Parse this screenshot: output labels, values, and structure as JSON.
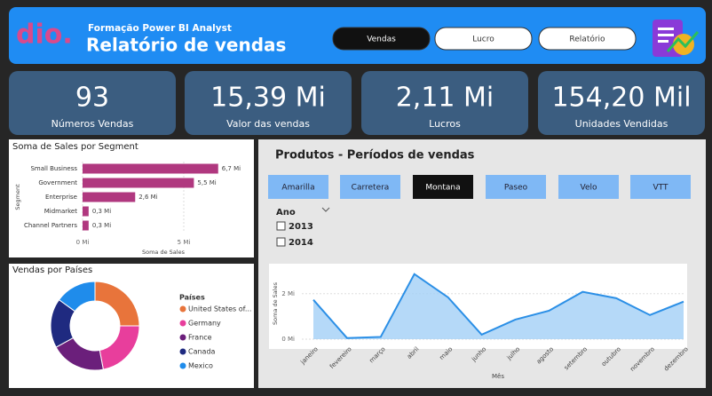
{
  "header": {
    "logo": "dio.",
    "subtitle": "Formação Power BI Analyst",
    "title": "Relatório de vendas"
  },
  "nav": [
    {
      "label": "Vendas",
      "selected": true
    },
    {
      "label": "Lucro",
      "selected": false
    },
    {
      "label": "Relatório",
      "selected": false
    }
  ],
  "kpis": [
    {
      "value": "93",
      "label": "Números Vendas"
    },
    {
      "value": "15,39 Mi",
      "label": "Valor das vendas"
    },
    {
      "value": "2,11 Mi",
      "label": "Lucros"
    },
    {
      "value": "154,20 Mil",
      "label": "Unidades Vendidas"
    }
  ],
  "products_panel": {
    "title": "Produtos - Períodos  de vendas",
    "products": [
      {
        "label": "Amarilla",
        "selected": false
      },
      {
        "label": "Carretera",
        "selected": false
      },
      {
        "label": "Montana",
        "selected": true
      },
      {
        "label": "Paseo",
        "selected": false
      },
      {
        "label": "Velo",
        "selected": false
      },
      {
        "label": "VTT",
        "selected": false
      }
    ],
    "slicer": {
      "title": "Ano",
      "options": [
        "2013",
        "2014"
      ]
    }
  },
  "chart_data": [
    {
      "type": "hbar",
      "title": "Soma de Sales por Segment",
      "x_label": "Soma de Sales",
      "y_label": "Segment",
      "categories": [
        "Small Business",
        "Government",
        "Enterprise",
        "Midmarket",
        "Channel Partners"
      ],
      "values": [
        6.7,
        5.5,
        2.6,
        0.3,
        0.3
      ],
      "value_labels": [
        "6,7 Mi",
        "5,5 Mi",
        "2,6 Mi",
        "0,3 Mi",
        "0,3 Mi"
      ],
      "color": "#b0387f",
      "xlim": [
        0,
        7.5
      ],
      "xticks": [
        {
          "value": 0,
          "label": "0 Mi"
        },
        {
          "value": 5,
          "label": "5 Mi"
        }
      ]
    },
    {
      "type": "donut",
      "title": "Vendas por Países",
      "legend_title": "Países",
      "categories": [
        "United States of...",
        "Germany",
        "France",
        "Canada",
        "Mexico"
      ],
      "values": [
        25,
        22,
        20,
        18,
        15
      ],
      "colors": [
        "#e8743b",
        "#e83e9c",
        "#6b1f7b",
        "#1f2a80",
        "#1f8ceb"
      ]
    },
    {
      "type": "area",
      "x_label": "Mês",
      "y_label": "Soma de Sales",
      "categories": [
        "janeiro",
        "fevereiro",
        "março",
        "abril",
        "maio",
        "junho",
        "julho",
        "agosto",
        "setembro",
        "outubro",
        "novembro",
        "dezembro"
      ],
      "values": [
        1.73,
        0.05,
        0.1,
        2.86,
        1.84,
        0.2,
        0.86,
        1.25,
        2.08,
        1.8,
        1.06,
        1.65
      ],
      "color": "#2b8fe6",
      "fill": "#a3cff6",
      "ylim": [
        0,
        3.2
      ],
      "yticks": [
        {
          "value": 0,
          "label": "0 Mi"
        },
        {
          "value": 2,
          "label": "2 Mi"
        }
      ]
    }
  ]
}
